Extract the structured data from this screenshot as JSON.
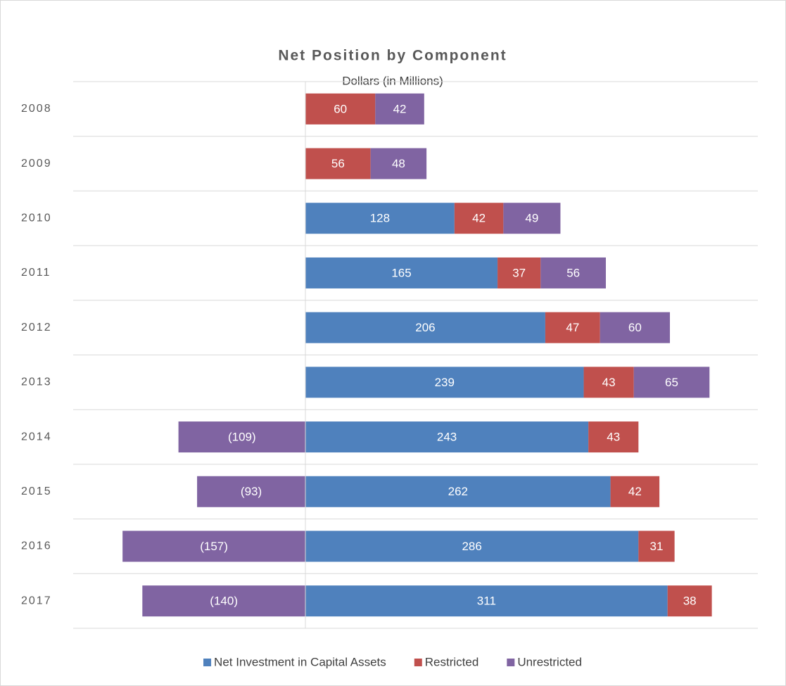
{
  "chart_data": {
    "type": "stacked-bar-horizontal",
    "title": "Net Position by Component",
    "subtitle": "Dollars (in Millions)",
    "categories": [
      "2008",
      "2009",
      "2010",
      "2011",
      "2012",
      "2013",
      "2014",
      "2015",
      "2016",
      "2017"
    ],
    "series": [
      {
        "name": "Net Investment in Capital Assets",
        "color": "#4f81bd",
        "values": [
          null,
          null,
          128,
          165,
          206,
          239,
          243,
          262,
          286,
          311
        ]
      },
      {
        "name": "Restricted",
        "color": "#c0504d",
        "values": [
          60,
          56,
          42,
          37,
          47,
          43,
          43,
          42,
          31,
          38
        ]
      },
      {
        "name": "Unrestricted",
        "color": "#8064a2",
        "values": [
          42,
          48,
          49,
          56,
          60,
          65,
          -109,
          -93,
          -157,
          -140
        ],
        "value_labels": [
          "42",
          "48",
          "49",
          "56",
          "60",
          "65",
          "(109)",
          "(93)",
          "(157)",
          "(140)"
        ]
      }
    ],
    "legend": "bottom"
  }
}
